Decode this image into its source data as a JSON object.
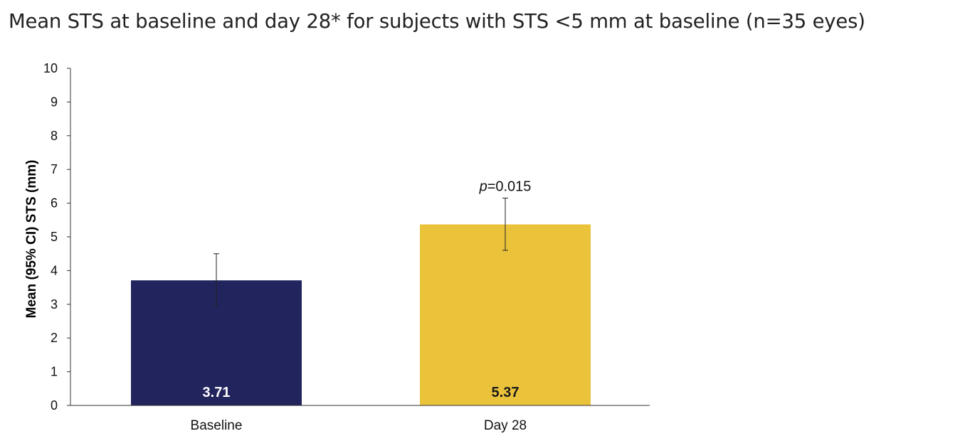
{
  "chart_data": {
    "type": "bar",
    "title": "Mean STS at baseline and day 28* for subjects with STS <5 mm at baseline (n=35 eyes)",
    "ylabel": "Mean (95% CI) STS (mm)",
    "xlabel": "",
    "ylim": [
      0,
      10
    ],
    "yticks": [
      "0",
      "1",
      "2",
      "3",
      "4",
      "5",
      "6",
      "7",
      "8",
      "9",
      "10"
    ],
    "categories": [
      "Baseline",
      "Day 28"
    ],
    "values": [
      3.71,
      5.37
    ],
    "value_labels": [
      "3.71",
      "5.37"
    ],
    "ci_lower": [
      2.95,
      4.6
    ],
    "ci_upper": [
      4.5,
      6.15
    ],
    "colors": [
      "#22245d",
      "#ebc33b"
    ],
    "value_label_colors": [
      "#ffffff",
      "#1a1a1a"
    ],
    "annotation": {
      "p_symbol": "p",
      "p_text": "=0.015",
      "category_index": 1
    },
    "grid": false,
    "legend": "none"
  }
}
